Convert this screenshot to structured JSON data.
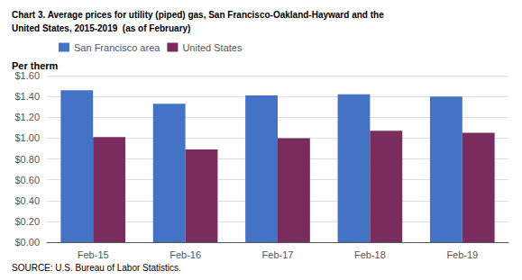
{
  "chart_data": {
    "type": "bar",
    "title": "Chart 3. Average prices for utility (piped) gas, San Francisco-Oakland-Hayward and the",
    "subtitle": "United States, 2015-2019  (as of February)",
    "ylabel": "Per therm",
    "annotations": [
      "SOURCE: U.S. Bureau of Labor Statistics."
    ],
    "categories": [
      "Feb-15",
      "Feb-16",
      "Feb-17",
      "Feb-18",
      "Feb-19"
    ],
    "series": [
      {
        "name": "San Francisco area",
        "color": "#4472C4",
        "values": [
          1.46,
          1.33,
          1.41,
          1.42,
          1.4
        ]
      },
      {
        "name": "United States",
        "color": "#7B2C5E",
        "values": [
          1.01,
          0.89,
          1.0,
          1.07,
          1.05
        ]
      }
    ],
    "ylim": [
      0.0,
      1.6
    ],
    "yticks": [
      {
        "value": 0.0,
        "label": "$0.00"
      },
      {
        "value": 0.2,
        "label": "$0.20"
      },
      {
        "value": 0.4,
        "label": "$0.40"
      },
      {
        "value": 0.6,
        "label": "$0.60"
      },
      {
        "value": 0.8,
        "label": "$0.80"
      },
      {
        "value": 1.0,
        "label": "$1.00"
      },
      {
        "value": 1.2,
        "label": "$1.20"
      },
      {
        "value": 1.4,
        "label": "$1.40"
      },
      {
        "value": 1.6,
        "label": "$1.60"
      }
    ],
    "grid": true,
    "legend": "upper left"
  }
}
